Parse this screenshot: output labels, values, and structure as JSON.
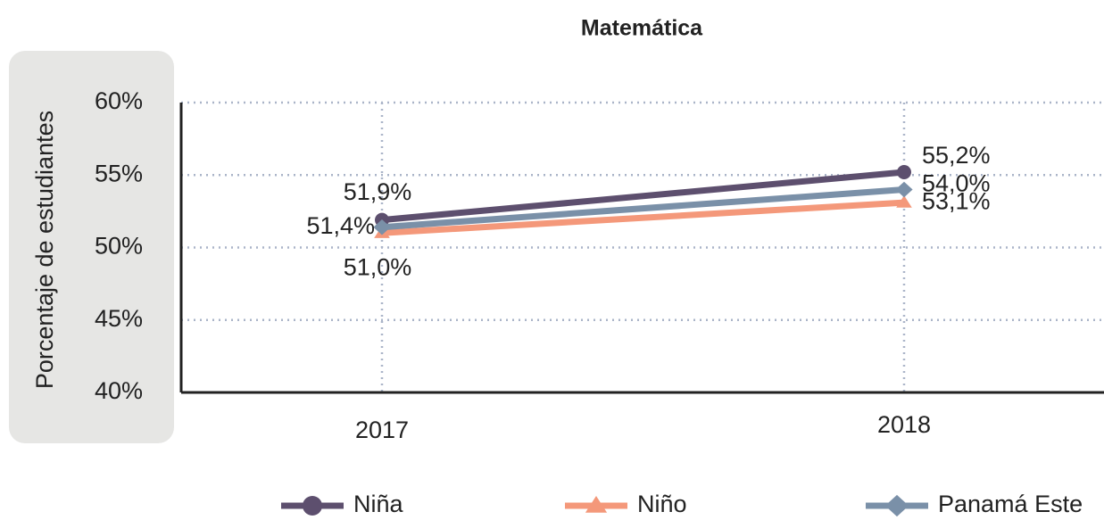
{
  "chart_data": {
    "type": "line",
    "title": "Matemática",
    "y_label": "Porcentaje de estudiantes",
    "categories": [
      "2017",
      "2018"
    ],
    "series": [
      {
        "name": "Niña",
        "color": "#5d4f6e",
        "marker": "circle",
        "values": [
          51.9,
          55.2
        ],
        "value_labels": [
          "51,9%",
          "55,2%"
        ]
      },
      {
        "name": "Niño",
        "color": "#f4987a",
        "marker": "triangle",
        "values": [
          51.0,
          53.1
        ],
        "value_labels": [
          "51,0%",
          "53,1%"
        ]
      },
      {
        "name": "Panamá Este",
        "color": "#7a90a8",
        "marker": "diamond",
        "values": [
          51.4,
          54.0
        ],
        "value_labels": [
          "51,4%",
          "54,0%"
        ]
      }
    ],
    "ylim": [
      40,
      60
    ],
    "yticks": [
      {
        "value": 40,
        "label": "40%"
      },
      {
        "value": 45,
        "label": "45%"
      },
      {
        "value": 50,
        "label": "50%"
      },
      {
        "value": 55,
        "label": "55%"
      },
      {
        "value": 60,
        "label": "60%"
      }
    ],
    "grid": true,
    "legend": "bottom"
  }
}
